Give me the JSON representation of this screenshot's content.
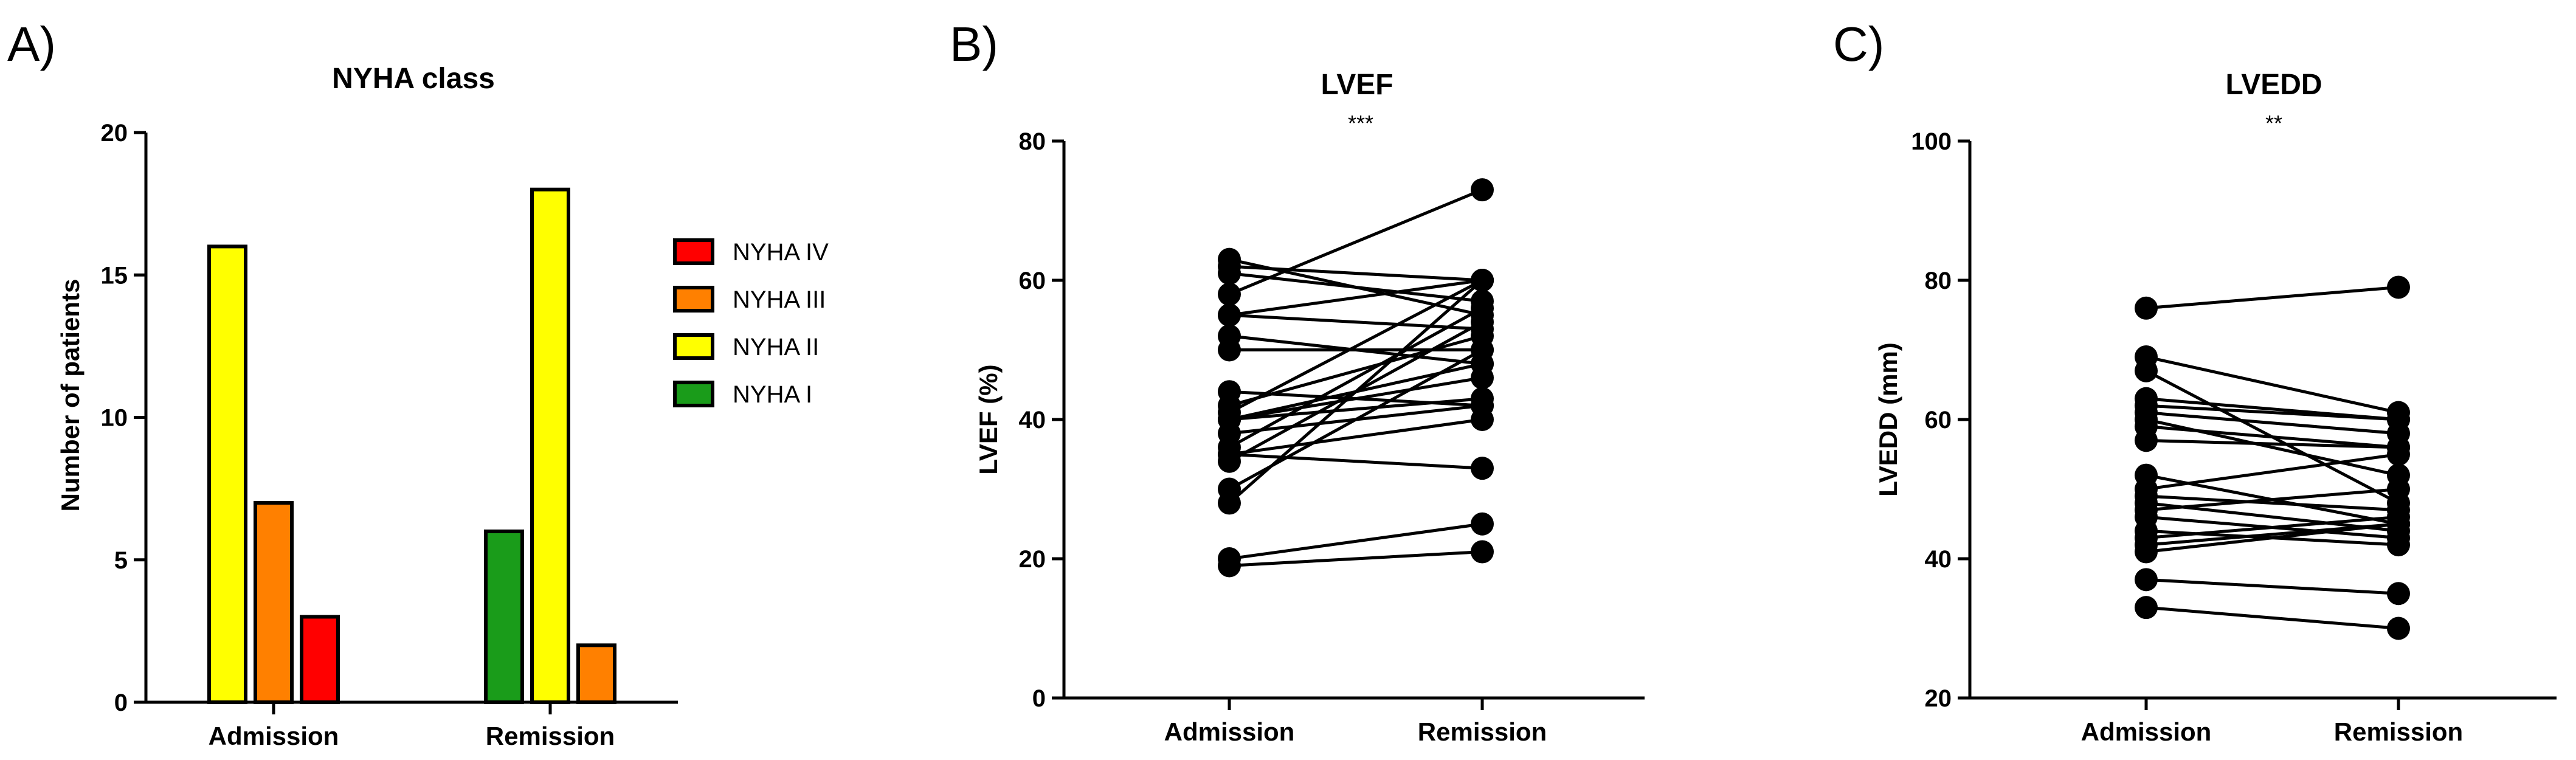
{
  "chart_data": [
    {
      "panel": "A)",
      "type": "bar",
      "title": "NYHA class",
      "xlabel": "",
      "ylabel": "Number of patients",
      "ylim": [
        0,
        20
      ],
      "yticks": [
        "0",
        "5",
        "10",
        "15",
        "20"
      ],
      "categories": [
        "Admission",
        "Remission"
      ],
      "series": [
        {
          "name": "NYHA IV",
          "color": "#ff0000",
          "values": [
            3,
            0
          ]
        },
        {
          "name": "NYHA III",
          "color": "#ff8000",
          "values": [
            7,
            2
          ]
        },
        {
          "name": "NYHA II",
          "color": "#ffff00",
          "values": [
            16,
            18
          ]
        },
        {
          "name": "NYHA I",
          "color": "#1a9c1a",
          "values": [
            0,
            6
          ]
        }
      ],
      "legend": [
        "NYHA IV",
        "NYHA III",
        "NYHA II",
        "NYHA I"
      ],
      "legend_position": "right"
    },
    {
      "panel": "B)",
      "type": "line",
      "title": "LVEF",
      "significance": "***",
      "xlabel": "",
      "ylabel": "LVEF (%)",
      "ylim": [
        0,
        80
      ],
      "yticks": [
        "0",
        "20",
        "40",
        "60",
        "80"
      ],
      "categories": [
        "Admission",
        "Remission"
      ],
      "pairs": [
        [
          63,
          55
        ],
        [
          62,
          60
        ],
        [
          61,
          57
        ],
        [
          58,
          73
        ],
        [
          55,
          60
        ],
        [
          55,
          53
        ],
        [
          52,
          48
        ],
        [
          50,
          50
        ],
        [
          44,
          42
        ],
        [
          42,
          52
        ],
        [
          41,
          60
        ],
        [
          40,
          48
        ],
        [
          40,
          46
        ],
        [
          40,
          43
        ],
        [
          38,
          42
        ],
        [
          36,
          56
        ],
        [
          35,
          40
        ],
        [
          35,
          33
        ],
        [
          34,
          54
        ],
        [
          30,
          50
        ],
        [
          28,
          60
        ],
        [
          20,
          25
        ],
        [
          19,
          21
        ]
      ]
    },
    {
      "panel": "C)",
      "type": "line",
      "title": "LVEDD",
      "significance": "**",
      "xlabel": "",
      "ylabel": "LVEDD (mm)",
      "ylim": [
        20,
        100
      ],
      "yticks": [
        "20",
        "40",
        "60",
        "80",
        "100"
      ],
      "categories": [
        "Admission",
        "Remission"
      ],
      "pairs": [
        [
          76,
          79
        ],
        [
          69,
          61
        ],
        [
          67,
          48
        ],
        [
          63,
          60
        ],
        [
          62,
          60
        ],
        [
          61,
          58
        ],
        [
          60,
          52
        ],
        [
          59,
          56
        ],
        [
          57,
          56
        ],
        [
          52,
          45
        ],
        [
          50,
          55
        ],
        [
          49,
          47
        ],
        [
          48,
          44
        ],
        [
          47,
          50
        ],
        [
          46,
          43
        ],
        [
          44,
          42
        ],
        [
          43,
          46
        ],
        [
          42,
          45
        ],
        [
          41,
          45
        ],
        [
          37,
          35
        ],
        [
          33,
          30
        ]
      ]
    }
  ]
}
